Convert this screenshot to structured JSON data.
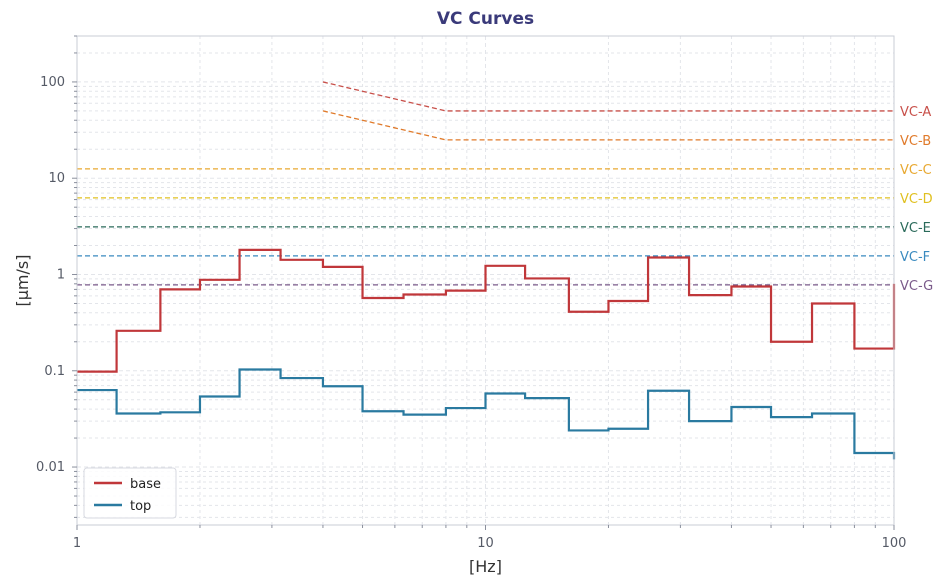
{
  "chart_data": {
    "type": "line",
    "title": "VC Curves",
    "xlabel": "[Hz]",
    "ylabel": "[µm/s]",
    "xscale": "log",
    "yscale": "log",
    "xlim": [
      1,
      100
    ],
    "ylim": [
      0.0025,
      300
    ],
    "grid": true,
    "legend_position": "bottom-left",
    "x_ticks": [
      {
        "value": 1,
        "label": "1"
      },
      {
        "value": 10,
        "label": "10"
      },
      {
        "value": 100,
        "label": "100"
      }
    ],
    "y_ticks": [
      {
        "value": 0.01,
        "label": "0.01"
      },
      {
        "value": 0.1,
        "label": "0.1"
      },
      {
        "value": 1,
        "label": "1"
      },
      {
        "value": 10,
        "label": "10"
      },
      {
        "value": 100,
        "label": "100"
      }
    ],
    "series": [
      {
        "name": "base",
        "style": "step",
        "color": "#c0373a",
        "x": [
          1,
          1.25,
          1.6,
          2,
          2.5,
          3.15,
          4,
          5,
          6.3,
          8,
          10,
          12.5,
          16,
          20,
          25,
          31.5,
          40,
          50,
          63,
          80,
          100
        ],
        "y": [
          0.098,
          0.26,
          0.7,
          0.88,
          1.8,
          1.42,
          1.2,
          0.57,
          0.62,
          0.68,
          1.23,
          0.91,
          0.41,
          0.53,
          1.5,
          0.61,
          0.75,
          0.2,
          0.5,
          0.17,
          0.8
        ]
      },
      {
        "name": "top",
        "style": "step",
        "color": "#2a7aa0",
        "x": [
          1,
          1.25,
          1.6,
          2,
          2.5,
          3.15,
          4,
          5,
          6.3,
          8,
          10,
          12.5,
          16,
          20,
          25,
          31.5,
          40,
          50,
          63,
          80,
          100
        ],
        "y": [
          0.063,
          0.036,
          0.037,
          0.054,
          0.103,
          0.084,
          0.069,
          0.038,
          0.035,
          0.041,
          0.058,
          0.052,
          0.024,
          0.025,
          0.062,
          0.03,
          0.042,
          0.033,
          0.036,
          0.014,
          0.012
        ]
      }
    ],
    "reference_curves": [
      {
        "label": "VC-A",
        "color": "#c8504a",
        "x": [
          4,
          8,
          100
        ],
        "y": [
          100,
          50,
          50
        ]
      },
      {
        "label": "VC-B",
        "color": "#e07a2a",
        "x": [
          4,
          8,
          100
        ],
        "y": [
          50,
          25,
          25
        ]
      },
      {
        "label": "VC-C",
        "color": "#e8a830",
        "x": [
          1,
          100
        ],
        "y": [
          12.5,
          12.5
        ]
      },
      {
        "label": "VC-D",
        "color": "#e0c020",
        "x": [
          1,
          100
        ],
        "y": [
          6.25,
          6.25
        ]
      },
      {
        "label": "VC-E",
        "color": "#2a6a5a",
        "x": [
          1,
          100
        ],
        "y": [
          3.12,
          3.12
        ]
      },
      {
        "label": "VC-F",
        "color": "#3a8abf",
        "x": [
          1,
          100
        ],
        "y": [
          1.56,
          1.56
        ]
      },
      {
        "label": "VC-G",
        "color": "#7a5a8a",
        "x": [
          1,
          100
        ],
        "y": [
          0.78,
          0.78
        ]
      }
    ]
  }
}
